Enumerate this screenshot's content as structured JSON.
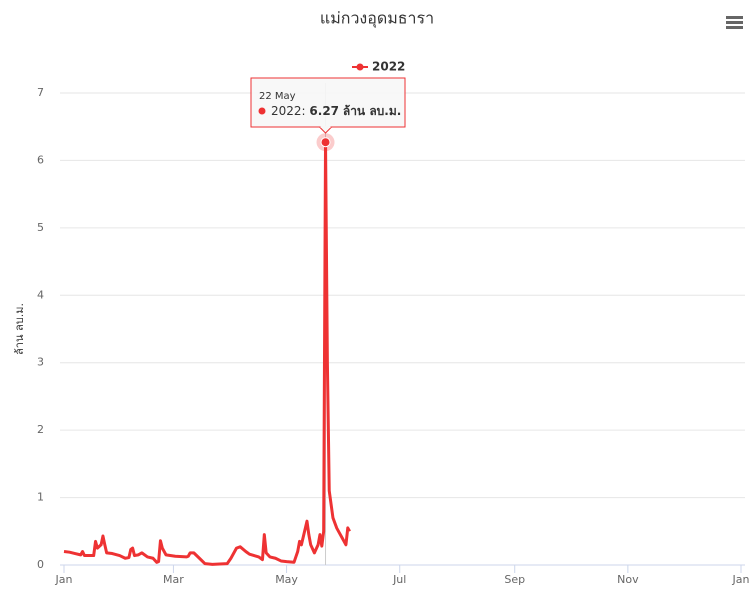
{
  "chart_data": {
    "type": "line",
    "title": "แม่กวงอุดมธารา",
    "ylabel": "ล้าน ลบ.ม.",
    "xlim": [
      0,
      365
    ],
    "xticks": [
      {
        "value": 0,
        "label": "Jan"
      },
      {
        "value": 59,
        "label": "Mar"
      },
      {
        "value": 120,
        "label": "May"
      },
      {
        "value": 181,
        "label": "Jul"
      },
      {
        "value": 243,
        "label": "Sep"
      },
      {
        "value": 304,
        "label": "Nov"
      },
      {
        "value": 365,
        "label": "Jan"
      }
    ],
    "ylim": [
      0,
      7
    ],
    "yticks": [
      0,
      1,
      2,
      3,
      4,
      5,
      6,
      7
    ],
    "grid": true,
    "legend": "top",
    "x": [
      0,
      3,
      6,
      9,
      10,
      11,
      16,
      17,
      18,
      20,
      21,
      22,
      23,
      26,
      30,
      33,
      35,
      36,
      37,
      38,
      40,
      42,
      45,
      48,
      50,
      51,
      52,
      53,
      55,
      60,
      66,
      67,
      68,
      70,
      73,
      76,
      80,
      88,
      90,
      93,
      95,
      98,
      100,
      105,
      107,
      108,
      109,
      111,
      114,
      117,
      120,
      124,
      126,
      127,
      128,
      131,
      132,
      133,
      135,
      137,
      138,
      139,
      140,
      141,
      142,
      143,
      145,
      147,
      148,
      150,
      152,
      153,
      154
    ],
    "series": [
      {
        "name": "2022",
        "color": "#ee3233",
        "values": [
          0.2,
          0.19,
          0.17,
          0.15,
          0.2,
          0.14,
          0.14,
          0.35,
          0.25,
          0.3,
          0.43,
          0.3,
          0.18,
          0.17,
          0.14,
          0.1,
          0.11,
          0.23,
          0.25,
          0.14,
          0.15,
          0.18,
          0.12,
          0.1,
          0.04,
          0.05,
          0.36,
          0.25,
          0.15,
          0.13,
          0.12,
          0.13,
          0.18,
          0.18,
          0.1,
          0.02,
          0.01,
          0.02,
          0.1,
          0.25,
          0.27,
          0.2,
          0.16,
          0.12,
          0.08,
          0.45,
          0.18,
          0.12,
          0.1,
          0.06,
          0.05,
          0.04,
          0.2,
          0.35,
          0.3,
          0.65,
          0.45,
          0.3,
          0.18,
          0.3,
          0.45,
          0.28,
          0.5,
          6.27,
          3,
          1.1,
          0.7,
          0.55,
          0.5,
          0.4,
          0.3,
          0.55,
          0.5
        ]
      }
    ],
    "tooltip": {
      "date": "22 May"
    }
  }
}
